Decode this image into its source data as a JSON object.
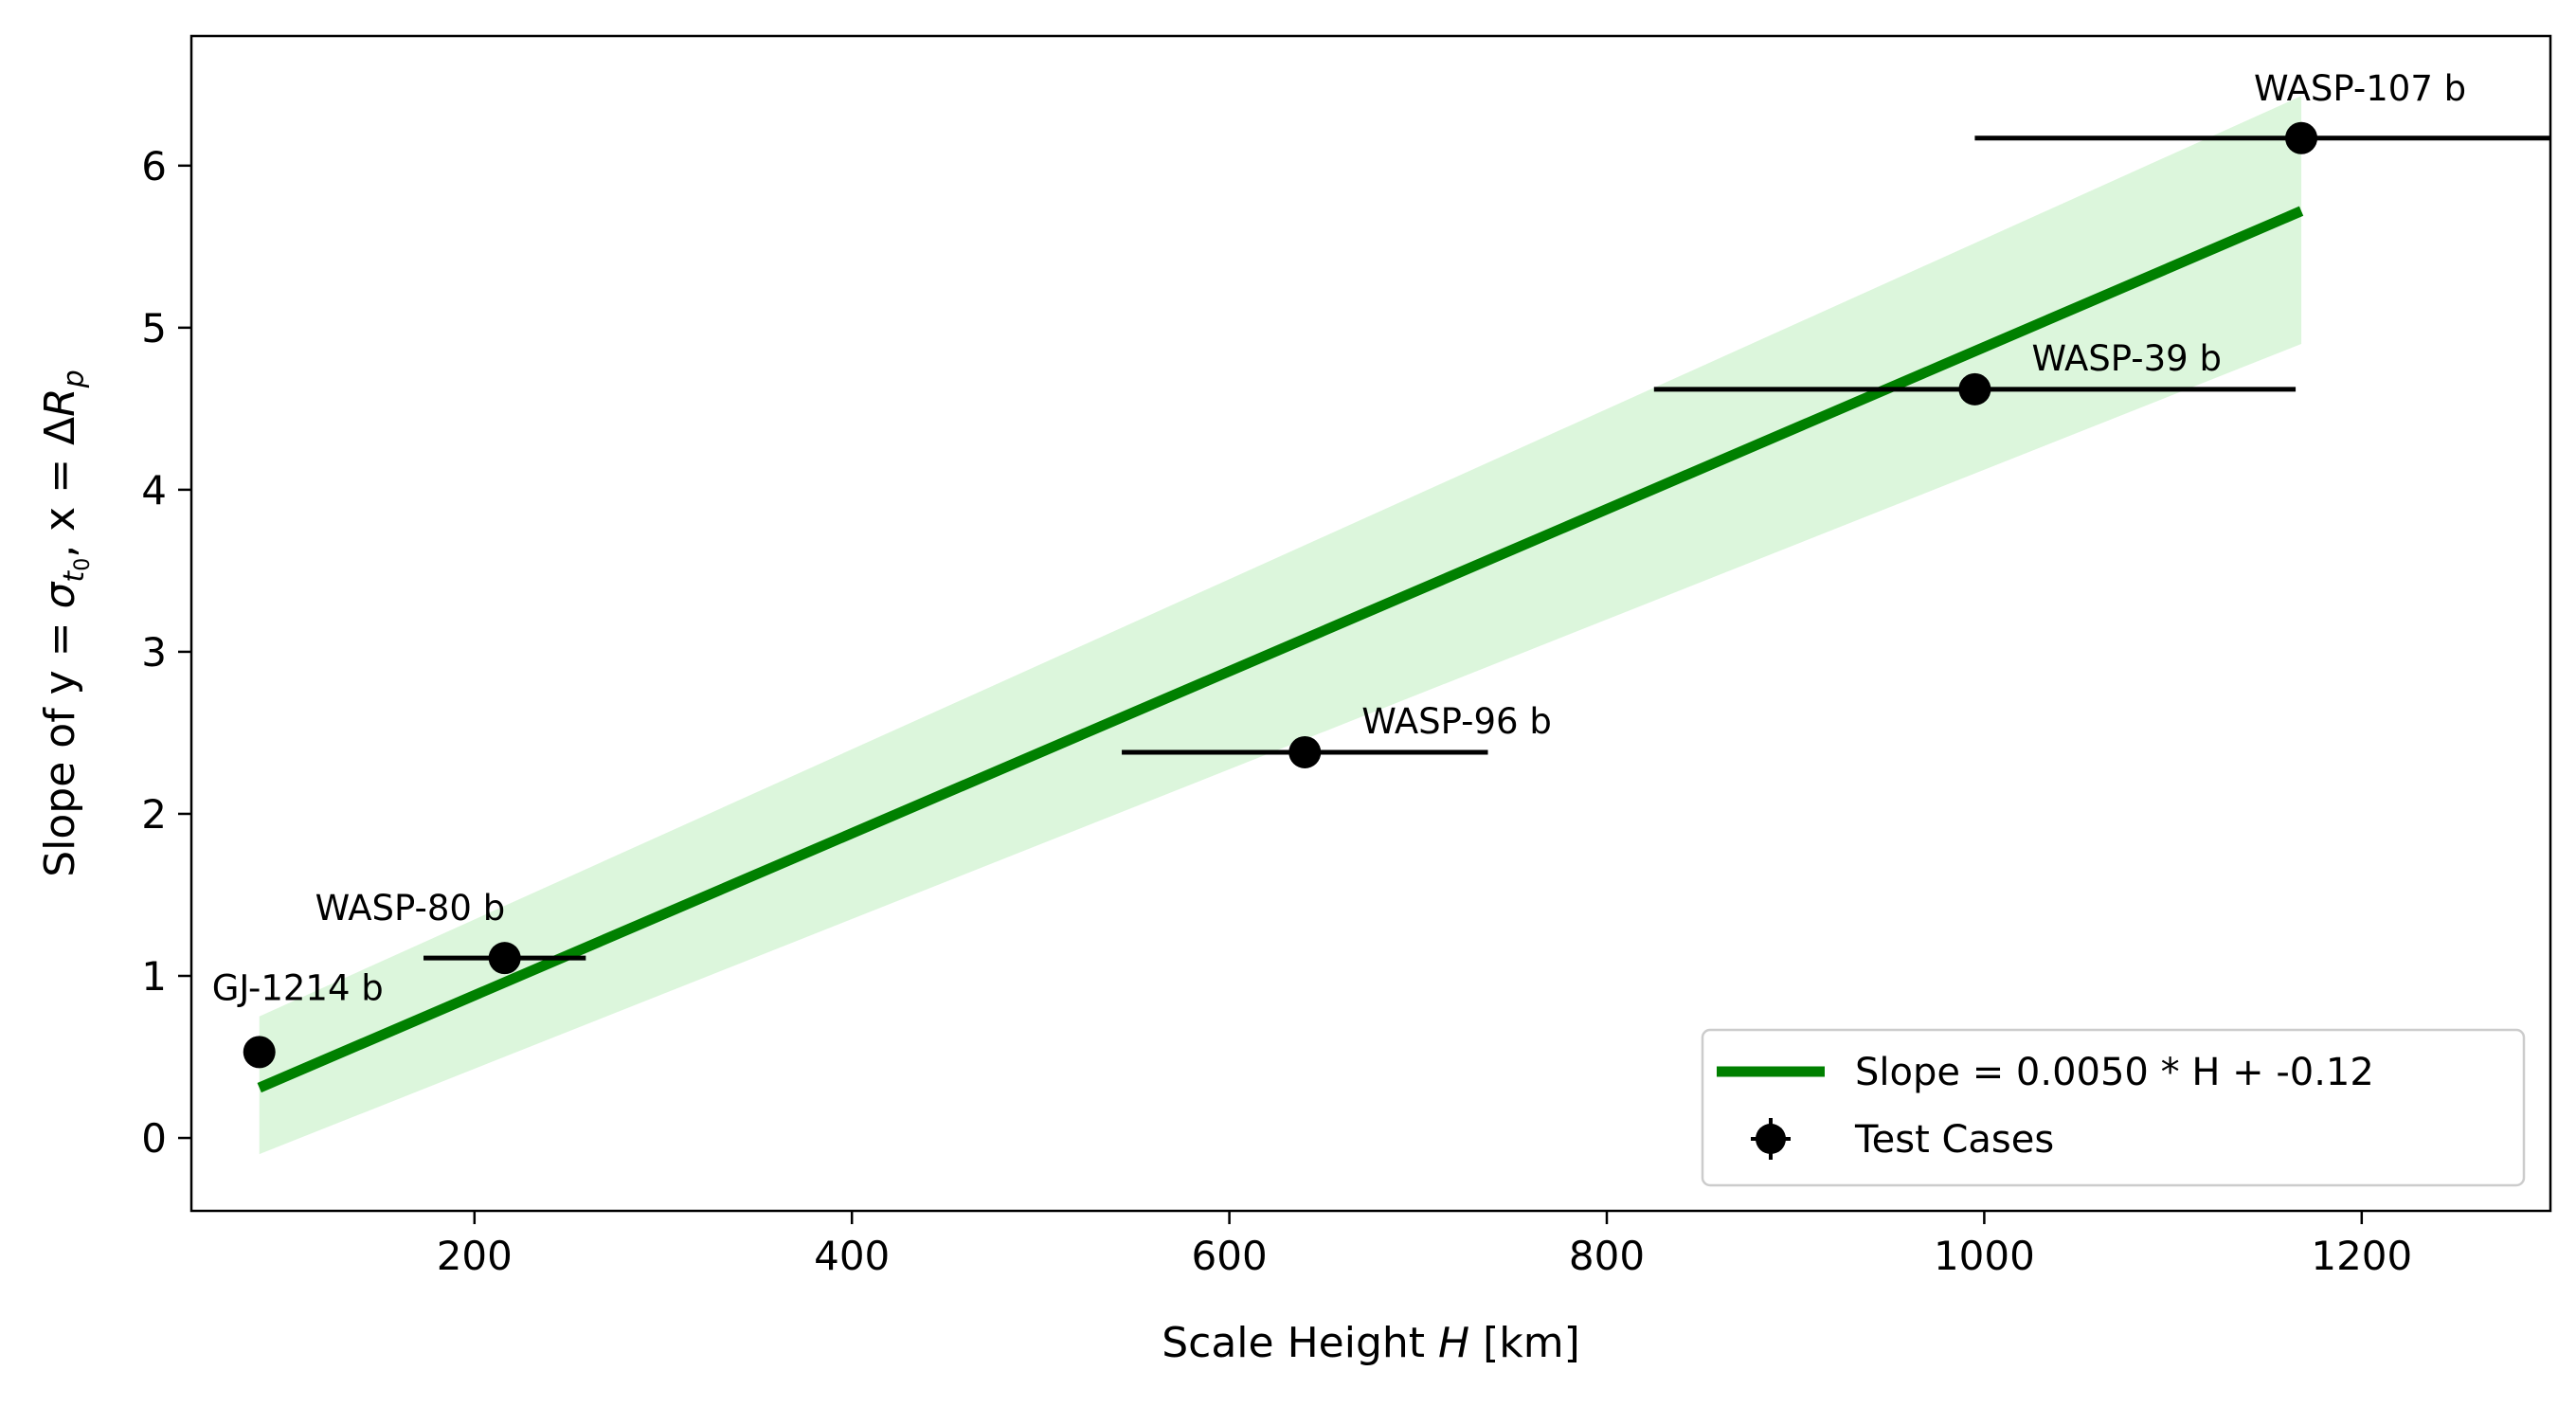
{
  "chart_data": {
    "type": "scatter",
    "xlabel_prefix": "Scale Height ",
    "xlabel_var": "H",
    "xlabel_suffix": " [km]",
    "ylabel_prefix": "Slope of y = ",
    "ylabel_sigma": "σ",
    "ylabel_sub_t": "t",
    "ylabel_sub_0": "0",
    "ylabel_mid": ", x = Δ",
    "ylabel_R": "R",
    "ylabel_sub_p": "p",
    "xlim": [
      50,
      1300
    ],
    "ylim": [
      -0.45,
      6.8
    ],
    "xticks": [
      200,
      400,
      600,
      800,
      1000,
      1200
    ],
    "yticks": [
      0,
      1,
      2,
      3,
      4,
      5,
      6
    ],
    "fit": {
      "name": "Slope = 0.0050 * H + -0.12",
      "slope": 0.005,
      "intercept": -0.12,
      "x_range": [
        86,
        1168
      ],
      "color": "#008000"
    },
    "band": {
      "color": "#dcf6dc",
      "x": [
        86,
        1168
      ],
      "lower": [
        -0.1,
        4.9
      ],
      "upper": [
        0.75,
        6.43
      ]
    },
    "points": {
      "name": "Test Cases",
      "color": "#000000",
      "data": [
        {
          "label": "GJ-1214 b",
          "x": 86,
          "y": 0.53,
          "xerr": 0
        },
        {
          "label": "WASP-80 b",
          "x": 216,
          "y": 1.11,
          "xerr": 43
        },
        {
          "label": "WASP-96 b",
          "x": 640,
          "y": 2.38,
          "xerr": 97
        },
        {
          "label": "WASP-39 b",
          "x": 995,
          "y": 4.62,
          "xerr": 170
        },
        {
          "label": "WASP-107 b",
          "x": 1168,
          "y": 6.17,
          "xerr": 173
        }
      ]
    },
    "legend_location": "lower right",
    "grid": false
  }
}
